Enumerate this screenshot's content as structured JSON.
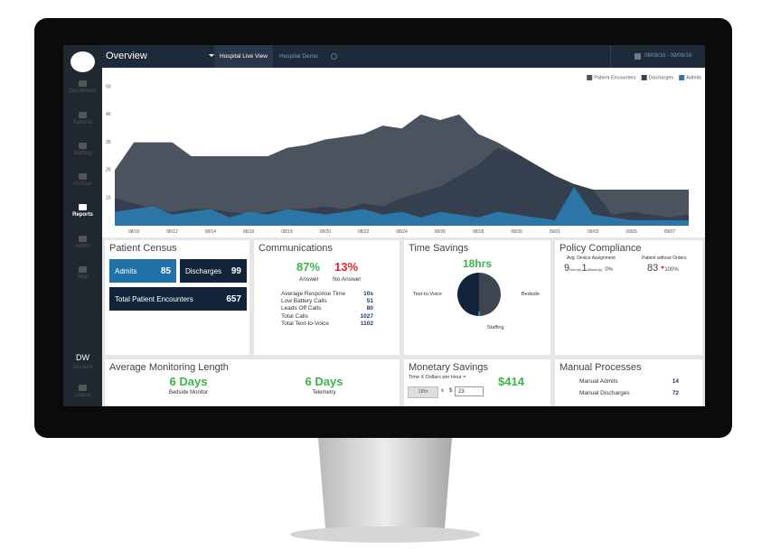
{
  "sidebar": {
    "items": [
      "Dashboard",
      "Patients",
      "Staffing",
      "Archive",
      "Reports",
      "Admin",
      "Help"
    ],
    "user": {
      "initials": "DW",
      "account": "Account",
      "logout": "Logout"
    }
  },
  "topbar": {
    "title": "Overview",
    "tabs": [
      "Hospital Live View",
      "Hospital Demo"
    ],
    "date_range": "08/09/16 - 09/08/16"
  },
  "chart_data": {
    "type": "area",
    "categories": [
      null,
      "08/10",
      null,
      "08/12",
      null,
      "08/14",
      null,
      "08/16",
      null,
      "08/18",
      null,
      "08/20",
      null,
      "08/22",
      null,
      "08/24",
      null,
      "08/26",
      null,
      "08/28",
      null,
      "08/30",
      null,
      "09/01",
      null,
      "09/03",
      null,
      "09/05",
      null,
      "09/07",
      null
    ],
    "series": [
      {
        "name": "Patient Encounters",
        "color": "#4b535e",
        "values": [
          20,
          30,
          30,
          30,
          25,
          25,
          25,
          25,
          25,
          28,
          29,
          31,
          32,
          33,
          36,
          35,
          40,
          38,
          40,
          33,
          30,
          26,
          12,
          8,
          6,
          13,
          13,
          13,
          13,
          13,
          13
        ]
      },
      {
        "name": "Discharges",
        "color": "#34404f",
        "values": [
          10,
          8,
          6,
          5,
          6,
          6,
          5,
          4,
          5,
          6,
          6,
          7,
          6,
          8,
          7,
          10,
          12,
          14,
          18,
          22,
          28,
          26,
          22,
          18,
          15,
          13,
          4,
          5,
          4,
          3,
          4
        ]
      },
      {
        "name": "Admits",
        "color": "#2b7bb0",
        "values": [
          5,
          6,
          7,
          4,
          5,
          6,
          3,
          5,
          4,
          6,
          5,
          4,
          5,
          6,
          4,
          5,
          3,
          5,
          4,
          3,
          5,
          4,
          3,
          2,
          14,
          4,
          3,
          2,
          2,
          2,
          2
        ]
      }
    ],
    "ylim": [
      0,
      50
    ],
    "yticks": [
      10,
      20,
      30,
      40,
      50
    ],
    "grid": false,
    "legend": "top-right"
  },
  "patient_census": {
    "title": "Patient Census",
    "admits": {
      "label": "Admits",
      "value": 85
    },
    "discharges": {
      "label": "Discharges",
      "value": 99
    },
    "total": {
      "label": "Total Patient Encounters",
      "value": 657
    }
  },
  "communications": {
    "title": "Communications",
    "answer": {
      "value": "87%",
      "label": "Answer"
    },
    "no_answer": {
      "value": "13%",
      "label": "No Answer"
    },
    "rows": [
      [
        "Average Response Time",
        "10s"
      ],
      [
        "Low Battery Calls",
        "51"
      ],
      [
        "Leads Off Calls",
        "80"
      ],
      [
        "Total Calls",
        "1027"
      ],
      [
        "Total Text-to-Voice",
        "1102"
      ]
    ]
  },
  "time_savings": {
    "title": "Time Savings",
    "total": "18hrs",
    "labels": [
      "Text-to-Voice",
      "Bedside",
      "Staffing"
    ]
  },
  "policy_compliance": {
    "title": "Policy Compliance",
    "device": {
      "label": "Avg. Device Assignment",
      "hours": "9",
      "hours_unit": "Hour(s)",
      "minutes": "1",
      "minutes_unit": "Minute(s)",
      "change": "0%"
    },
    "orders": {
      "label": "Patient without Orders",
      "value": "83",
      "change": "100%"
    }
  },
  "monitoring": {
    "title": "Average Monitoring Length",
    "items": [
      {
        "value": "6 Days",
        "label": "Bedside Monitor"
      },
      {
        "value": "6 Days",
        "label": "Telemetry"
      }
    ]
  },
  "monetary": {
    "title": "Monetary Savings",
    "formula": "Time X Dollars per Hour =",
    "hours": "18hr",
    "times": "x",
    "currency": "$",
    "rate": "23",
    "result": "$414"
  },
  "manual": {
    "title": "Manual Processes",
    "rows": [
      [
        "Manual Admits",
        "14"
      ],
      [
        "Manual Discharges",
        "72"
      ]
    ]
  }
}
